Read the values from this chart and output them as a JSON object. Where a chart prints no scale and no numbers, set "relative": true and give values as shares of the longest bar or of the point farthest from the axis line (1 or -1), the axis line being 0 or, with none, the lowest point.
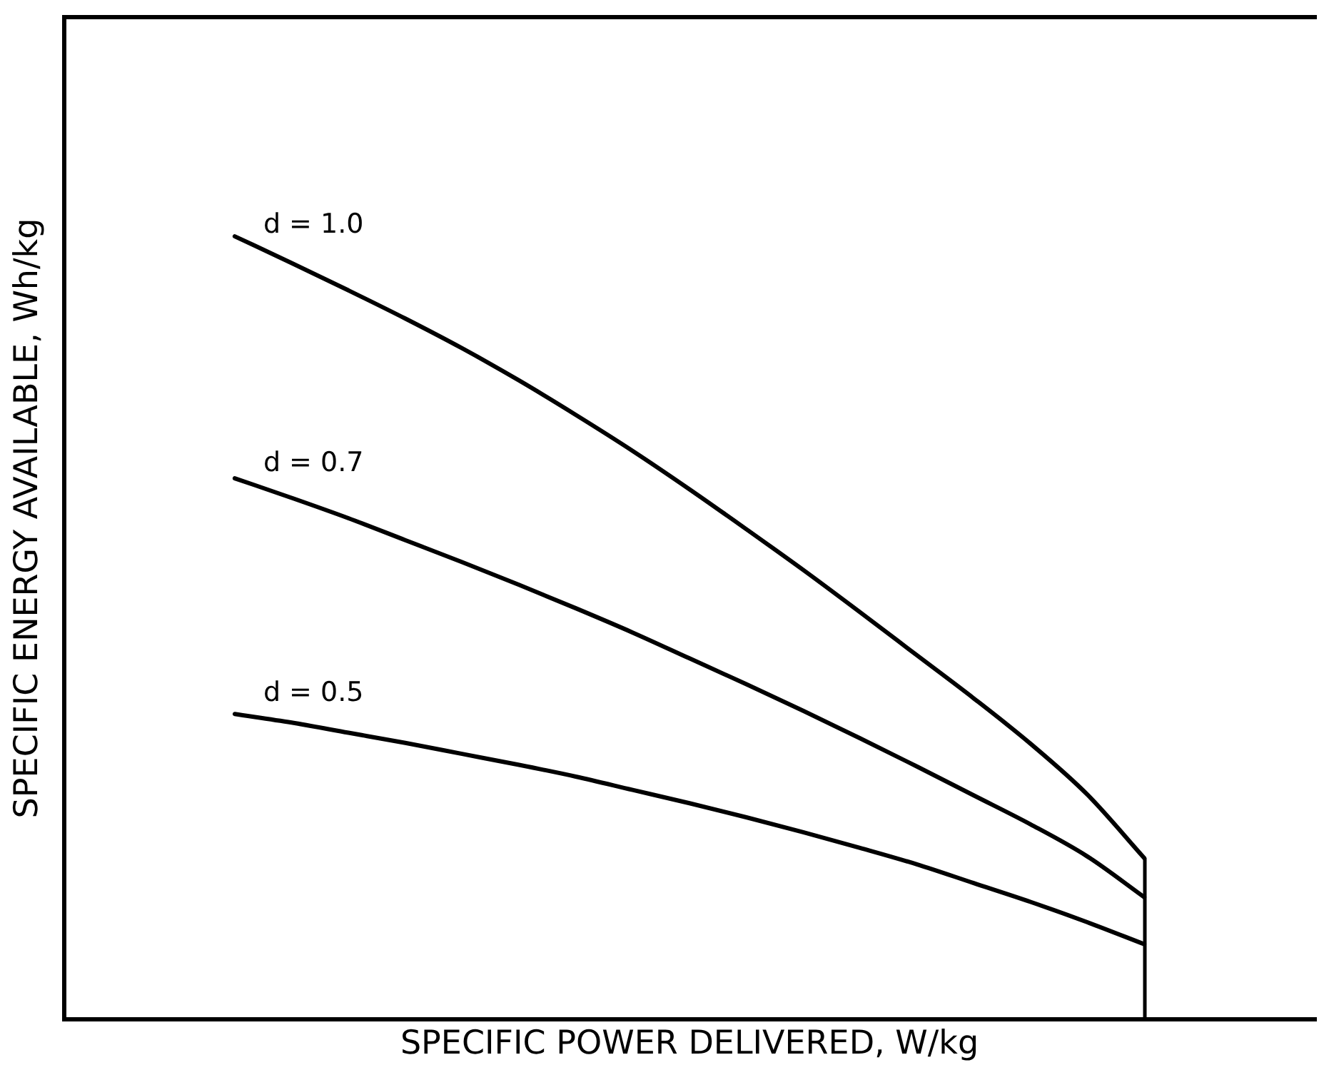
{
  "chart_data": {
    "type": "line",
    "xlabel": "SPECIFIC POWER DELIVERED, W/kg",
    "ylabel": "SPECIFIC ENERGY AVAILABLE, Wh/kg",
    "relative": true,
    "categories": [
      null,
      null,
      null,
      null,
      null,
      null,
      null,
      null,
      null,
      null,
      null,
      null,
      null,
      null,
      null,
      null,
      null,
      null,
      null,
      null,
      null,
      null,
      null
    ],
    "series": [
      {
        "name": "d = 1.0",
        "color": "#000000",
        "values": [
          null,
          null,
          null,
          1,
          0.966,
          0.931,
          0.895,
          0.857,
          0.816,
          0.772,
          0.726,
          0.677,
          0.626,
          0.574,
          0.52,
          0.465,
          0.41,
          0.352,
          0.287,
          0.206,
          null,
          null,
          null
        ]
      },
      {
        "name": "d = 0.7",
        "color": "#000000",
        "values": [
          null,
          null,
          null,
          0.691,
          0.666,
          0.64,
          0.612,
          0.584,
          0.555,
          0.525,
          0.494,
          0.461,
          0.428,
          0.394,
          0.359,
          0.323,
          0.286,
          0.249,
          0.208,
          0.156,
          null,
          null,
          null
        ]
      },
      {
        "name": "d = 0.5",
        "color": "#000000",
        "values": [
          null,
          null,
          null,
          0.39,
          0.379,
          0.366,
          0.353,
          0.339,
          0.325,
          0.31,
          0.293,
          0.276,
          0.258,
          0.239,
          0.219,
          0.198,
          0.174,
          0.15,
          0.124,
          0.096,
          null,
          null,
          null
        ]
      }
    ],
    "grid": false,
    "legend": false
  }
}
